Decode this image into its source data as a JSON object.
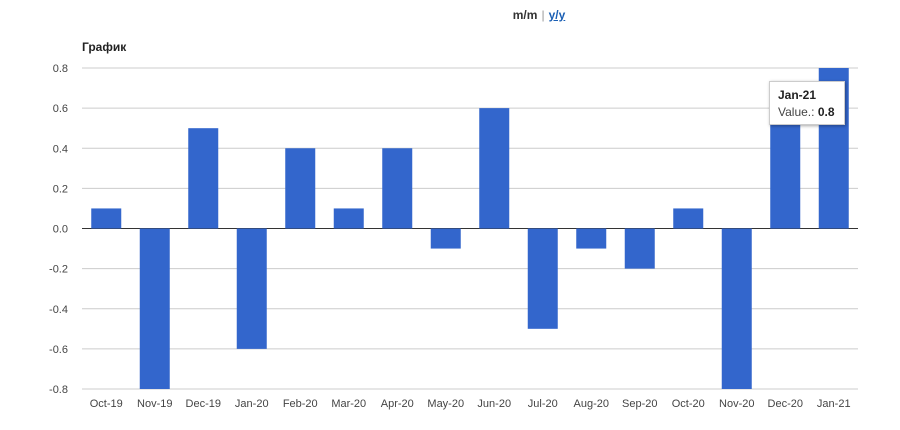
{
  "toggle": {
    "mm_label": "m/m",
    "separator": "|",
    "yy_label": "y/y"
  },
  "colors": {
    "bar": "#3366cc",
    "grid": "#cccccc",
    "link": "#1a5fb4"
  },
  "tooltip": {
    "title": "Jan-21",
    "value_label": "Value.:",
    "value": "0.8"
  },
  "chart_data": {
    "type": "bar",
    "title": "График",
    "xlabel": "",
    "ylabel": "",
    "ylim": [
      -0.8,
      0.8
    ],
    "yticks": [
      0.8,
      0.6,
      0.4,
      0.2,
      0.0,
      -0.2,
      -0.4,
      -0.6,
      -0.8
    ],
    "ytick_labels": [
      "0.8",
      "0.6",
      "0.4",
      "0.2",
      "0.0",
      "-0.2",
      "-0.4",
      "-0.6",
      "-0.8"
    ],
    "grid": true,
    "legend": "none",
    "categories": [
      "Oct-19",
      "Nov-19",
      "Dec-19",
      "Jan-20",
      "Feb-20",
      "Mar-20",
      "Apr-20",
      "May-20",
      "Jun-20",
      "Jul-20",
      "Aug-20",
      "Sep-20",
      "Oct-20",
      "Nov-20",
      "Dec-20",
      "Jan-21"
    ],
    "values": [
      0.1,
      -0.8,
      0.5,
      -0.6,
      0.4,
      0.1,
      0.4,
      -0.1,
      0.6,
      -0.5,
      -0.1,
      -0.2,
      0.1,
      -0.8,
      0.7,
      0.8
    ]
  }
}
